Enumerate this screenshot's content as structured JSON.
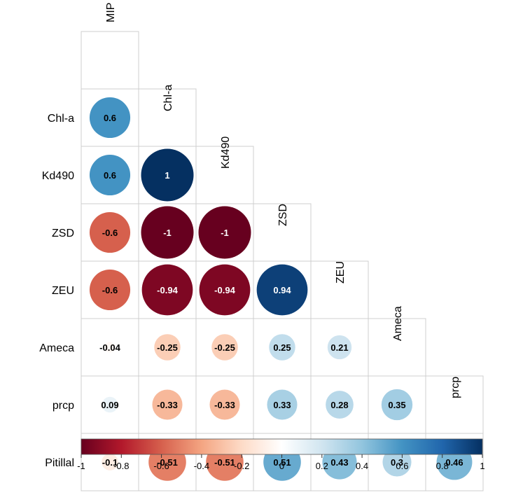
{
  "chart_data": {
    "type": "heatmap",
    "subtype": "correlation-circle-lower-triangle",
    "variables": [
      "MIP",
      "Chl-a",
      "Kd490",
      "ZSD",
      "ZEU",
      "Ameca",
      "prcp",
      "Pitillal"
    ],
    "row_labels": [
      "Chl-a",
      "Kd490",
      "ZSD",
      "ZEU",
      "Ameca",
      "prcp",
      "Pitillal"
    ],
    "column_labels": [
      "MIP",
      "Chl-a",
      "Kd490",
      "ZSD",
      "ZEU",
      "Ameca",
      "prcp"
    ],
    "cells": [
      {
        "row": "Chl-a",
        "col": "MIP",
        "value": 0.6,
        "label": "0.6"
      },
      {
        "row": "Kd490",
        "col": "MIP",
        "value": 0.6,
        "label": "0.6"
      },
      {
        "row": "Kd490",
        "col": "Chl-a",
        "value": 1,
        "label": "1"
      },
      {
        "row": "ZSD",
        "col": "MIP",
        "value": -0.6,
        "label": "-0.6"
      },
      {
        "row": "ZSD",
        "col": "Chl-a",
        "value": -1,
        "label": "-1"
      },
      {
        "row": "ZSD",
        "col": "Kd490",
        "value": -1,
        "label": "-1"
      },
      {
        "row": "ZEU",
        "col": "MIP",
        "value": -0.6,
        "label": "-0.6"
      },
      {
        "row": "ZEU",
        "col": "Chl-a",
        "value": -0.94,
        "label": "-0.94"
      },
      {
        "row": "ZEU",
        "col": "Kd490",
        "value": -0.94,
        "label": "-0.94"
      },
      {
        "row": "ZEU",
        "col": "ZSD",
        "value": 0.94,
        "label": "0.94"
      },
      {
        "row": "Ameca",
        "col": "MIP",
        "value": -0.04,
        "label": "-0.04"
      },
      {
        "row": "Ameca",
        "col": "Chl-a",
        "value": -0.25,
        "label": "-0.25"
      },
      {
        "row": "Ameca",
        "col": "Kd490",
        "value": -0.25,
        "label": "-0.25"
      },
      {
        "row": "Ameca",
        "col": "ZSD",
        "value": 0.25,
        "label": "0.25"
      },
      {
        "row": "Ameca",
        "col": "ZEU",
        "value": 0.21,
        "label": "0.21"
      },
      {
        "row": "prcp",
        "col": "MIP",
        "value": 0.09,
        "label": "0.09"
      },
      {
        "row": "prcp",
        "col": "Chl-a",
        "value": -0.33,
        "label": "-0.33"
      },
      {
        "row": "prcp",
        "col": "Kd490",
        "value": -0.33,
        "label": "-0.33"
      },
      {
        "row": "prcp",
        "col": "ZSD",
        "value": 0.33,
        "label": "0.33"
      },
      {
        "row": "prcp",
        "col": "ZEU",
        "value": 0.28,
        "label": "0.28"
      },
      {
        "row": "prcp",
        "col": "Ameca",
        "value": 0.35,
        "label": "0.35"
      },
      {
        "row": "Pitillal",
        "col": "MIP",
        "value": -0.1,
        "label": "-0.1"
      },
      {
        "row": "Pitillal",
        "col": "Chl-a",
        "value": -0.51,
        "label": "-0.51"
      },
      {
        "row": "Pitillal",
        "col": "Kd490",
        "value": -0.51,
        "label": "-0.51"
      },
      {
        "row": "Pitillal",
        "col": "ZSD",
        "value": 0.51,
        "label": "0.51"
      },
      {
        "row": "Pitillal",
        "col": "ZEU",
        "value": 0.43,
        "label": "0.43"
      },
      {
        "row": "Pitillal",
        "col": "Ameca",
        "value": 0.3,
        "label": "0.3"
      },
      {
        "row": "Pitillal",
        "col": "prcp",
        "value": 0.46,
        "label": "0.46"
      }
    ],
    "colorbar": {
      "range": [
        -1,
        1
      ],
      "ticks": [
        -1,
        -0.8,
        -0.6,
        -0.4,
        -0.2,
        0,
        0.2,
        0.4,
        0.6,
        0.8,
        1
      ],
      "tick_labels": [
        "-1",
        "-0.8",
        "-0.6",
        "-0.4",
        "-0.2",
        "0",
        "0.2",
        "0.4",
        "0.6",
        "0.8",
        "1"
      ],
      "placement": "bottom",
      "colors": [
        "#67001f",
        "#b2182b",
        "#d6604d",
        "#f4a582",
        "#fddbc7",
        "#ffffff",
        "#d1e5f0",
        "#92c5de",
        "#4393c3",
        "#2166ac",
        "#053061"
      ]
    },
    "grid": true,
    "title": ""
  }
}
